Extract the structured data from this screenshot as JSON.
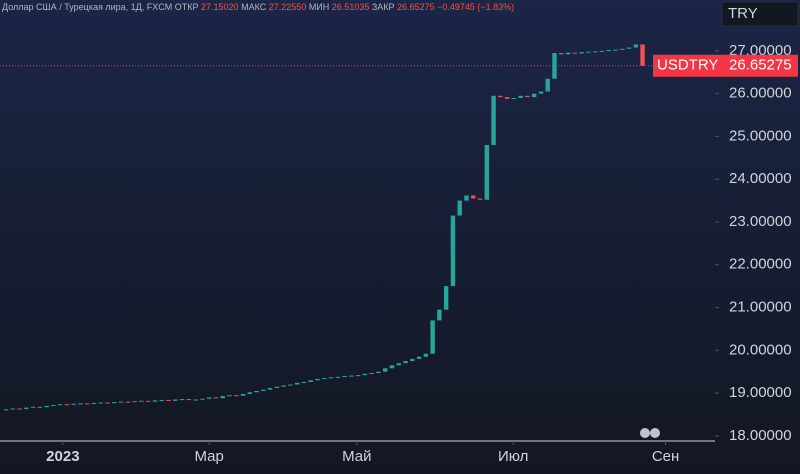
{
  "header": {
    "title": "Доллар США / Турецкая лира, 1Д, FXCM",
    "stats": [
      {
        "label": "ОТКР",
        "value": "27.15020"
      },
      {
        "label": "МАКС",
        "value": "27.22550"
      },
      {
        "label": "МИН",
        "value": "26.51035"
      },
      {
        "label": "ЗАКР",
        "value": "26.65275"
      }
    ],
    "change": "−0.49745 (−1.83%)",
    "currency": "TRY"
  },
  "chart_data": {
    "type": "candlestick",
    "up_color": "#26a69a",
    "down_color": "#ef5350",
    "open": [
      18.6,
      18.62,
      18.64,
      18.63,
      18.66,
      18.68,
      18.67,
      18.7,
      18.72,
      18.74,
      18.73,
      18.75,
      18.76,
      18.75,
      18.77,
      18.78,
      18.77,
      18.79,
      18.8,
      18.79,
      18.81,
      18.82,
      18.8,
      18.83,
      18.84,
      18.82,
      18.85,
      18.86,
      18.84,
      18.85,
      18.87,
      18.9,
      18.88,
      18.93,
      18.95,
      18.94,
      18.98,
      19.02,
      19.05,
      19.08,
      19.12,
      19.15,
      19.18,
      19.2,
      19.24,
      19.26,
      19.3,
      19.33,
      19.35,
      19.37,
      19.38,
      19.4,
      19.41,
      19.42,
      19.45,
      19.47,
      19.5,
      19.58,
      19.65,
      19.7,
      19.75,
      19.8,
      19.85,
      19.92,
      20.7,
      20.95,
      21.5,
      23.15,
      23.5,
      23.62,
      23.55,
      23.52,
      24.8,
      25.95,
      25.92,
      25.88,
      25.9,
      25.95,
      25.92,
      26.0,
      26.05,
      26.35,
      26.95,
      26.92,
      26.96,
      26.94,
      26.97,
      26.98,
      26.99,
      27.0,
      27.02,
      27.03,
      27.05,
      27.08,
      27.15
    ],
    "close": [
      18.62,
      18.64,
      18.63,
      18.66,
      18.68,
      18.67,
      18.7,
      18.72,
      18.74,
      18.73,
      18.75,
      18.76,
      18.75,
      18.77,
      18.78,
      18.77,
      18.79,
      18.8,
      18.79,
      18.81,
      18.82,
      18.8,
      18.83,
      18.84,
      18.82,
      18.85,
      18.86,
      18.84,
      18.85,
      18.87,
      18.9,
      18.88,
      18.93,
      18.95,
      18.94,
      18.98,
      19.02,
      19.05,
      19.08,
      19.12,
      19.15,
      19.18,
      19.2,
      19.24,
      19.26,
      19.3,
      19.33,
      19.35,
      19.37,
      19.38,
      19.4,
      19.41,
      19.42,
      19.45,
      19.47,
      19.5,
      19.58,
      19.65,
      19.7,
      19.75,
      19.8,
      19.85,
      19.92,
      20.7,
      20.95,
      21.5,
      23.15,
      23.5,
      23.62,
      23.55,
      23.52,
      24.8,
      25.95,
      25.92,
      25.88,
      25.9,
      25.95,
      25.92,
      26.0,
      26.05,
      26.35,
      26.95,
      26.92,
      26.96,
      26.94,
      26.97,
      26.98,
      26.99,
      27.0,
      27.02,
      27.03,
      27.05,
      27.08,
      27.15,
      26.65
    ],
    "xlim": [
      -0.44,
      104.7
    ],
    "xticks": [
      {
        "value": 8.4,
        "label": "2023"
      },
      {
        "value": 30,
        "label": "Мар"
      },
      {
        "value": 51.8,
        "label": "Май"
      },
      {
        "value": 74.9,
        "label": "Июл"
      },
      {
        "value": 97.4,
        "label": "Сен"
      }
    ],
    "ylim": [
      17.88,
      28.19
    ],
    "yticks": [
      {
        "value": 18,
        "label": "18.00000"
      },
      {
        "value": 19,
        "label": "19.00000"
      },
      {
        "value": 20,
        "label": "20.00000"
      },
      {
        "value": 21,
        "label": "21.00000"
      },
      {
        "value": 22,
        "label": "22.00000"
      },
      {
        "value": 23,
        "label": "23.00000"
      },
      {
        "value": 24,
        "label": "24.00000"
      },
      {
        "value": 25,
        "label": "25.00000"
      },
      {
        "value": 26,
        "label": "26.00000"
      },
      {
        "value": 27,
        "label": "27.00000"
      }
    ],
    "last_price": {
      "name": "USDTRY",
      "value": 26.65275,
      "color": "#f23645"
    }
  }
}
